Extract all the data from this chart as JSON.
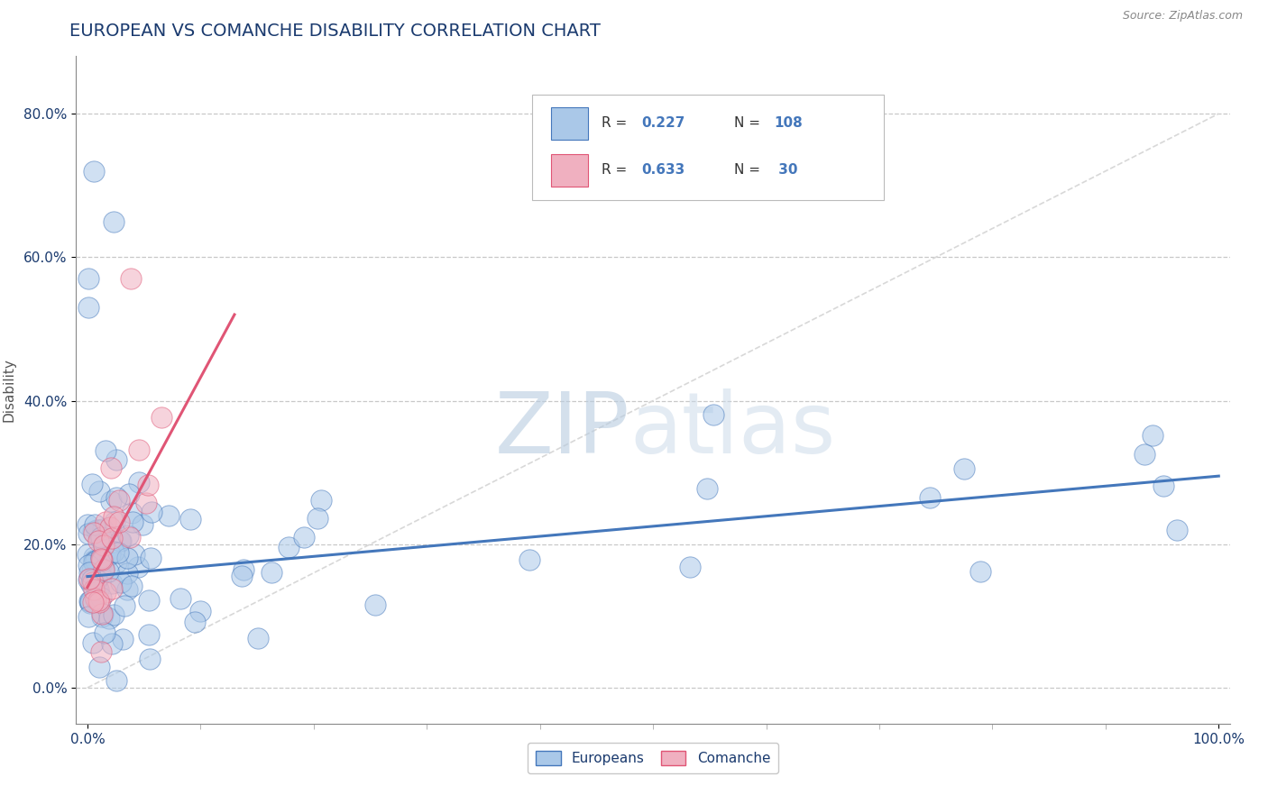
{
  "title": "EUROPEAN VS COMANCHE DISABILITY CORRELATION CHART",
  "source": "Source: ZipAtlas.com",
  "ylabel": "Disability",
  "xlim": [
    -0.01,
    1.01
  ],
  "ylim": [
    -0.05,
    0.88
  ],
  "ytick_values": [
    0.0,
    0.2,
    0.4,
    0.6,
    0.8
  ],
  "title_color": "#1a3a6e",
  "title_fontsize": 14,
  "background_color": "#ffffff",
  "grid_color": "#c8c8c8",
  "color_blue": "#aac8e8",
  "color_pink": "#f0b0c0",
  "line_blue": "#4477bb",
  "line_pink": "#e05575",
  "diag_color": "#d8d8d8",
  "watermark_color": "#d0dce8",
  "eu_line_y0": 0.155,
  "eu_line_y1": 0.295,
  "co_line_x0": 0.0,
  "co_line_y0": 0.14,
  "co_line_x1": 0.13,
  "co_line_y1": 0.52
}
